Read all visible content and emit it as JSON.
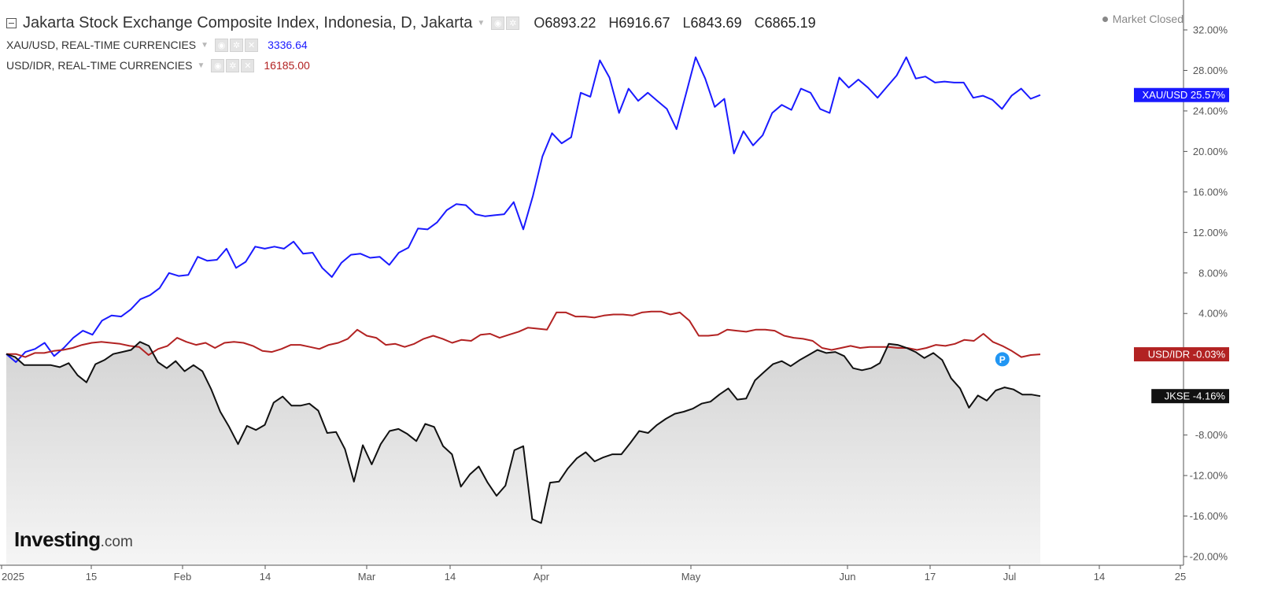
{
  "header": {
    "title": "Jakarta Stock Exchange Composite Index, Indonesia, D, Jakarta",
    "ohlc": [
      {
        "key": "O",
        "value": "6893.22"
      },
      {
        "key": "H",
        "value": "6916.67"
      },
      {
        "key": "L",
        "value": "6843.69"
      },
      {
        "key": "C",
        "value": "6865.19"
      }
    ],
    "status": "Market Closed",
    "overlays": [
      {
        "name": "XAU/USD, REAL-TIME CURRENCIES",
        "value": "3336.64",
        "color": "#1a1aff"
      },
      {
        "name": "USD/IDR, REAL-TIME CURRENCIES",
        "value": "16185.00",
        "color": "#b22222"
      }
    ]
  },
  "logo": {
    "brand": "Investing",
    "suffix": ".com"
  },
  "marker_letter": "P",
  "chart_data": {
    "type": "line",
    "y_unit": "%",
    "ylim": [
      -20,
      32
    ],
    "y_ticks": [
      "32.00%",
      "28.00%",
      "24.00%",
      "20.00%",
      "16.00%",
      "12.00%",
      "8.00%",
      "4.00%",
      "0.00%",
      "-4.00%",
      "-8.00%",
      "-12.00%",
      "-16.00%",
      "-20.00%"
    ],
    "x_ticks": [
      "2025",
      "15",
      "Feb",
      "14",
      "Mar",
      "14",
      "Apr",
      "May",
      "Jun",
      "17",
      "Jul",
      "14",
      "25"
    ],
    "grid": false,
    "series": [
      {
        "name": "XAU/USD",
        "label": "XAU/USD",
        "last_label": "25.57%",
        "color": "#1a1aff",
        "values": [
          0,
          -0.8,
          0.2,
          0.5,
          1.1,
          -0.2,
          0.6,
          1.6,
          2.3,
          1.9,
          3.3,
          3.8,
          3.7,
          4.4,
          5.4,
          5.8,
          6.5,
          8,
          7.7,
          7.8,
          9.6,
          9.2,
          9.3,
          10.4,
          8.5,
          9.1,
          10.6,
          10.4,
          10.6,
          10.4,
          11.1,
          9.9,
          10,
          8.5,
          7.6,
          9,
          9.8,
          9.9,
          9.5,
          9.6,
          8.8,
          10,
          10.5,
          12.4,
          12.3,
          13,
          14.2,
          14.8,
          14.7,
          13.8,
          13.6,
          13.7,
          13.8,
          15,
          12.3,
          15.6,
          19.5,
          21.8,
          20.8,
          21.4,
          25.8,
          25.4,
          29,
          27.3,
          23.8,
          26.2,
          25,
          25.8,
          25,
          24.2,
          22.2,
          25.7,
          29.3,
          27.2,
          24.4,
          25.2,
          19.8,
          22,
          20.6,
          21.6,
          23.8,
          24.6,
          24.1,
          26.2,
          25.8,
          24.2,
          23.8,
          27.3,
          26.3,
          27.1,
          26.3,
          25.3,
          26.4,
          27.5,
          29.3,
          27.2,
          27.4,
          26.8,
          26.9,
          26.8,
          26.8,
          25.3,
          25.5,
          25.1,
          24.2,
          25.5,
          26.2,
          25.2,
          25.57
        ]
      },
      {
        "name": "USD/IDR",
        "label": "USD/IDR",
        "last_label": "-0.03%",
        "color": "#b22222",
        "values": [
          0,
          0,
          -0.3,
          0.1,
          0.1,
          0.3,
          0.4,
          0.6,
          0.9,
          1.1,
          1.2,
          1.1,
          1,
          0.8,
          0.7,
          -0.1,
          0.5,
          0.8,
          1.6,
          1.2,
          0.9,
          1.1,
          0.6,
          1.1,
          1.2,
          1.1,
          0.8,
          0.3,
          0.2,
          0.5,
          0.9,
          0.9,
          0.7,
          0.5,
          0.9,
          1.1,
          1.5,
          2.4,
          1.8,
          1.6,
          0.9,
          1,
          0.7,
          1,
          1.5,
          1.8,
          1.5,
          1.1,
          1.4,
          1.3,
          1.9,
          2,
          1.6,
          1.9,
          2.2,
          2.6,
          2.5,
          2.4,
          4.1,
          4.1,
          3.7,
          3.7,
          3.6,
          3.8,
          3.9,
          3.9,
          3.8,
          4.1,
          4.2,
          4.2,
          3.9,
          4.1,
          3.3,
          1.8,
          1.8,
          1.9,
          2.4,
          2.3,
          2.2,
          2.4,
          2.4,
          2.3,
          1.8,
          1.6,
          1.5,
          1.3,
          0.6,
          0.4,
          0.6,
          0.8,
          0.6,
          0.7,
          0.7,
          0.7,
          0.6,
          0.6,
          0.4,
          0.6,
          0.9,
          0.8,
          1,
          1.4,
          1.3,
          2,
          1.2,
          0.8,
          0.3,
          -0.3,
          -0.1,
          -0.03
        ]
      },
      {
        "name": "JKSE",
        "label": "JKSE",
        "last_label": "-4.16%",
        "color": "#111111",
        "values": [
          0,
          -0.3,
          -1.1,
          -1.1,
          -1.1,
          -1.1,
          -1.3,
          -0.9,
          -2.1,
          -2.8,
          -1,
          -0.6,
          0,
          0.2,
          0.4,
          1.2,
          0.8,
          -0.8,
          -1.4,
          -0.7,
          -1.7,
          -1.1,
          -1.7,
          -3.5,
          -5.7,
          -7.2,
          -8.9,
          -7.1,
          -7.5,
          -7,
          -4.8,
          -4.2,
          -5.1,
          -5.1,
          -4.9,
          -5.6,
          -7.8,
          -7.7,
          -9.4,
          -12.6,
          -9,
          -10.9,
          -8.9,
          -7.6,
          -7.4,
          -7.9,
          -8.6,
          -6.9,
          -7.2,
          -9.1,
          -9.9,
          -13.1,
          -11.9,
          -11.1,
          -12.7,
          -14,
          -13,
          -9.5,
          -9.1,
          -16.3,
          -16.7,
          -12.7,
          -12.6,
          -11.3,
          -10.3,
          -9.7,
          -10.6,
          -10.2,
          -9.9,
          -9.9,
          -8.8,
          -7.6,
          -7.8,
          -7,
          -6.4,
          -5.9,
          -5.7,
          -5.4,
          -4.9,
          -4.7,
          -4,
          -3.4,
          -4.5,
          -4.4,
          -2.6,
          -1.8,
          -1,
          -0.7,
          -1.2,
          -0.6,
          -0.1,
          0.4,
          0.1,
          0.2,
          -0.2,
          -1.4,
          -1.6,
          -1.4,
          -0.9,
          1,
          0.9,
          0.6,
          0.2,
          -0.4,
          0.1,
          -0.6,
          -2.4,
          -3.4,
          -5.3,
          -4.1,
          -4.6,
          -3.6,
          -3.3,
          -3.5,
          -4,
          -4,
          -4.16
        ]
      }
    ]
  }
}
